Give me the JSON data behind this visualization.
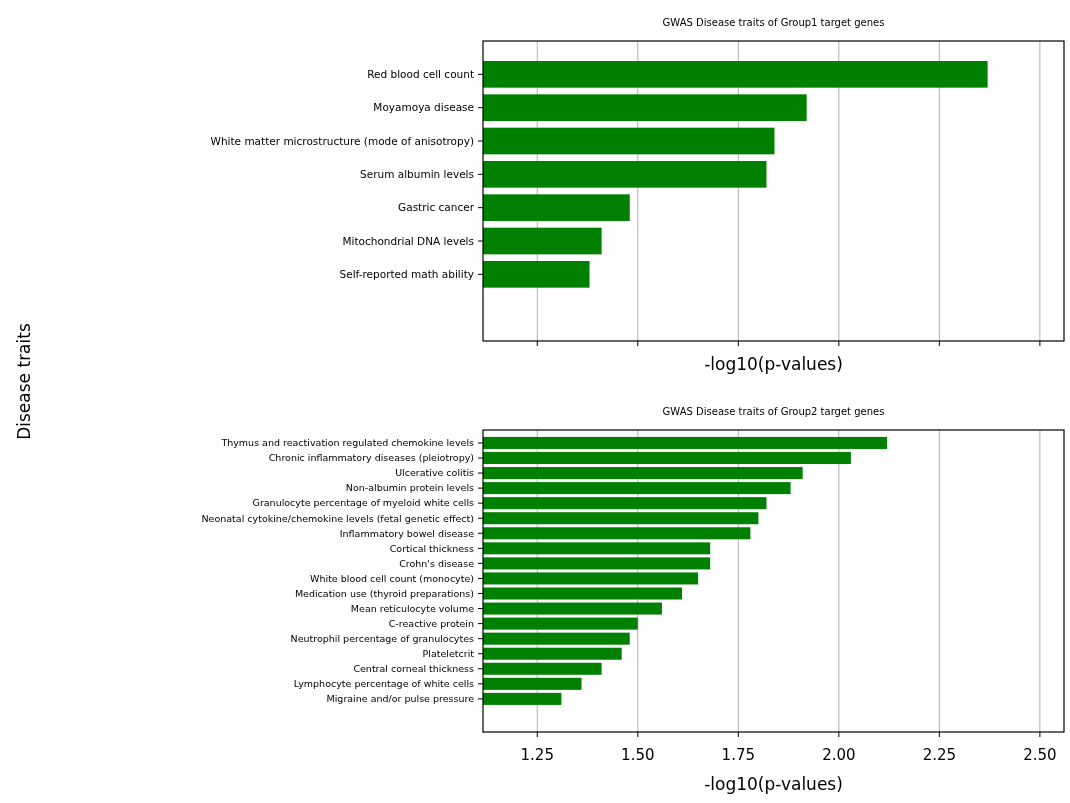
{
  "chart_data": [
    {
      "type": "bar",
      "orientation": "horizontal",
      "title": "GWAS Disease traits of Group1 target genes",
      "xlabel": "-log10(p-values)",
      "ylabel": "Disease traits",
      "categories": [
        "Red blood cell count",
        "Moyamoya disease",
        "White matter microstructure (mode of anisotropy)",
        "Serum albumin levels",
        "Gastric cancer",
        "Mitochondrial DNA levels",
        "Self-reported math ability"
      ],
      "values": [
        2.37,
        1.92,
        1.84,
        1.82,
        1.48,
        1.41,
        1.38
      ],
      "color": "#008000",
      "xlim": [
        1.115,
        2.56
      ],
      "xticks": [
        {
          "value": 1.25,
          "label": null
        },
        {
          "value": 1.5,
          "label": null
        },
        {
          "value": 1.75,
          "label": null
        },
        {
          "value": 2.0,
          "label": null
        },
        {
          "value": 2.25,
          "label": null
        },
        {
          "value": 2.5,
          "label": null
        }
      ],
      "grid": "x",
      "tick_labels": "y"
    },
    {
      "type": "bar",
      "orientation": "horizontal",
      "title": "GWAS Disease traits of Group2 target genes",
      "xlabel": "-log10(p-values)",
      "categories": [
        "Thymus and reactivation regulated chemokine levels",
        "Chronic inflammatory diseases (pleiotropy)",
        "Ulcerative colitis",
        "Non-albumin protein levels",
        "Granulocyte percentage of myeloid white cells",
        "Neonatal cytokine/chemokine levels (fetal genetic effect)",
        "Inflammatory bowel disease",
        "Cortical thickness",
        "Crohn's disease",
        "White blood cell count (monocyte)",
        "Medication use (thyroid preparations)",
        "Mean reticulocyte volume",
        "C-reactive protein",
        "Neutrophil percentage of granulocytes",
        "Plateletcrit",
        "Central corneal thickness",
        "Lymphocyte percentage of white cells",
        "Migraine and/or pulse pressure"
      ],
      "values": [
        2.12,
        2.03,
        1.91,
        1.88,
        1.82,
        1.8,
        1.78,
        1.68,
        1.68,
        1.65,
        1.61,
        1.56,
        1.5,
        1.48,
        1.46,
        1.41,
        1.36,
        1.31
      ],
      "color": "#008000",
      "xlim": [
        1.115,
        2.56
      ],
      "xticks": [
        {
          "value": 1.25,
          "label": "1.25"
        },
        {
          "value": 1.5,
          "label": "1.50"
        },
        {
          "value": 1.75,
          "label": "1.75"
        },
        {
          "value": 2.0,
          "label": "2.00"
        },
        {
          "value": 2.25,
          "label": "2.25"
        },
        {
          "value": 2.5,
          "label": "2.50"
        }
      ],
      "grid": "x"
    }
  ]
}
